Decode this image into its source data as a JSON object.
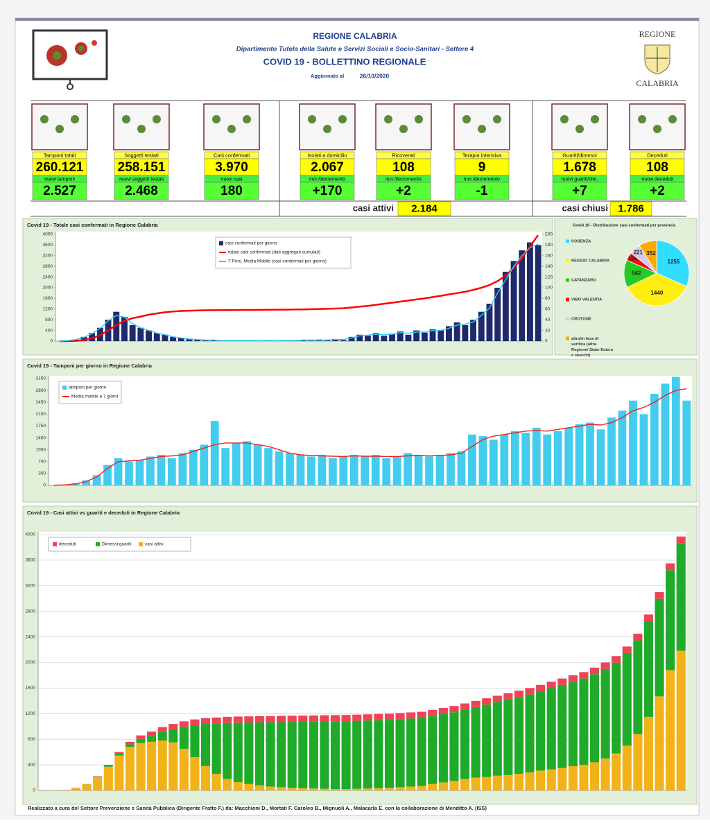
{
  "header": {
    "title": "REGIONE CALABRIA",
    "department": "Dipartimento Tutela della Salute e Servizi Sociali e Socio-Sanitari - Settore 4",
    "bulletin": "COVID 19 - BOLLETTINO REGIONALE",
    "updated_label": "Aggiornato al",
    "updated_date": "26/10/2020",
    "logo_top": "REGIONE",
    "logo_bottom": "CALABRIA"
  },
  "stats": [
    {
      "label": "Tamponi totali",
      "value": "260.121",
      "sub_label": "nuovi tamponi",
      "sub_value": "2.527"
    },
    {
      "label": "Soggetti testati",
      "value": "258.151",
      "sub_label": "nuovi soggetti testati",
      "sub_value": "2.468"
    },
    {
      "label": "Casi confermati",
      "value": "3.970",
      "sub_label": "nuovi casi",
      "sub_value": "180"
    },
    {
      "label": "Isolati a domicilio",
      "value": "2.067",
      "sub_label": "incr./decremento",
      "sub_value": "+170"
    },
    {
      "label": "Ricoverati",
      "value": "108",
      "sub_label": "incr./decremento",
      "sub_value": "+2"
    },
    {
      "label": "Terapia intensiva",
      "value": "9",
      "sub_label": "incr./decremento",
      "sub_value": "-1"
    },
    {
      "label": "Guariti/dimessi",
      "value": "1.678",
      "sub_label": "nuovi guariti/dim.",
      "sub_value": "+7"
    },
    {
      "label": "Deceduti",
      "value": "108",
      "sub_label": "nuovi deceduti",
      "sub_value": "+2"
    }
  ],
  "summary": [
    {
      "label": "casi attivi",
      "value": "2.184"
    },
    {
      "label": "casi chiusi",
      "value": "1.786"
    }
  ],
  "chart_data": [
    {
      "type": "bar",
      "title": "Covid 19 - Totale casi confermati in Regione Calabria",
      "ylim": [
        0,
        4000
      ],
      "yticks": [
        0,
        400,
        800,
        1200,
        1600,
        2000,
        2400,
        2800,
        3200,
        3600,
        4000
      ],
      "y2lim": [
        0,
        200
      ],
      "y2ticks": [
        0,
        20,
        40,
        60,
        80,
        100,
        120,
        140,
        160,
        180,
        200
      ],
      "legend": "top-center",
      "series": [
        {
          "name": "casi confermati per giorno",
          "type": "bar",
          "axis": "y2",
          "color": "#1f2a6b",
          "values": [
            0,
            1,
            3,
            8,
            15,
            25,
            40,
            55,
            45,
            30,
            25,
            20,
            15,
            12,
            8,
            6,
            4,
            3,
            2,
            2,
            1,
            1,
            1,
            1,
            1,
            0,
            1,
            0,
            1,
            1,
            2,
            1,
            3,
            2,
            4,
            2,
            8,
            12,
            10,
            15,
            10,
            14,
            18,
            12,
            20,
            16,
            22,
            20,
            28,
            35,
            30,
            40,
            55,
            70,
            100,
            130,
            150,
            170,
            185,
            180
          ]
        },
        {
          "name": "totale casi confermati (dati aggregati cumulati)",
          "type": "line",
          "color": "#ff0000",
          "values": [
            0,
            2,
            10,
            40,
            100,
            220,
            400,
            600,
            760,
            860,
            920,
            990,
            1040,
            1080,
            1110,
            1130,
            1140,
            1150,
            1155,
            1158,
            1160,
            1162,
            1165,
            1168,
            1170,
            1172,
            1175,
            1178,
            1180,
            1185,
            1190,
            1195,
            1200,
            1210,
            1220,
            1230,
            1260,
            1290,
            1320,
            1360,
            1400,
            1440,
            1480,
            1520,
            1560,
            1600,
            1650,
            1700,
            1750,
            1800,
            1850,
            1920,
            2000,
            2100,
            2250,
            2450,
            2750,
            3100,
            3550,
            3970
          ]
        },
        {
          "name": "7 Perc. Media Mobile (casi confermati per giorno)",
          "type": "line",
          "axis": "y2",
          "color": "#33ccee",
          "values": [
            0,
            1,
            3,
            7,
            14,
            24,
            38,
            48,
            45,
            33,
            25,
            20,
            15,
            12,
            8,
            6,
            4,
            3,
            2,
            2,
            1,
            1,
            1,
            1,
            1,
            1,
            1,
            1,
            1,
            1,
            2,
            2,
            2,
            2,
            3,
            3,
            6,
            10,
            11,
            13,
            12,
            13,
            16,
            15,
            17,
            17,
            20,
            20,
            24,
            30,
            32,
            36,
            48,
            62,
            90,
            115,
            140,
            160,
            175,
            182
          ]
        }
      ]
    },
    {
      "type": "pie",
      "title": "Covid 19 - Distribuzione casi confermati per provincia",
      "categories": [
        "COSENZA",
        "REGGIO CALABRIA",
        "CATANZARO",
        "VIBO VALENTIA",
        "CROTONE",
        "altro/in fase di verifica (altra Regione/ Stato Estero e sbarchi)"
      ],
      "values": [
        1255,
        1440,
        542,
        160,
        221,
        352
      ],
      "colors": [
        "#33ddff",
        "#ffee11",
        "#22cc22",
        "#ee1111",
        "#d8c8ee",
        "#ffaa00"
      ]
    },
    {
      "type": "bar",
      "title": "Covid 19 - Tamponi per giorno in Regione Calabria",
      "ylim": [
        0,
        3150
      ],
      "yticks": [
        0,
        350,
        700,
        1050,
        1400,
        1750,
        2100,
        2450,
        2800,
        3150
      ],
      "legend": "top-left",
      "series": [
        {
          "name": "tamponi per giorno",
          "type": "bar",
          "color": "#44ccee",
          "values": [
            0,
            20,
            60,
            150,
            300,
            600,
            800,
            700,
            750,
            850,
            900,
            800,
            950,
            1050,
            1200,
            1900,
            1100,
            1250,
            1300,
            1200,
            1100,
            1000,
            950,
            900,
            850,
            900,
            800,
            850,
            900,
            850,
            900,
            800,
            850,
            950,
            900,
            850,
            900,
            950,
            1000,
            1500,
            1450,
            1350,
            1500,
            1600,
            1550,
            1700,
            1500,
            1600,
            1700,
            1800,
            1850,
            1650,
            2000,
            2200,
            2500,
            2100,
            2700,
            3000,
            3200,
            2500
          ]
        },
        {
          "name": "Media mobile a 7 giorni",
          "type": "line",
          "color": "#ee2222",
          "values": [
            0,
            15,
            40,
            110,
            250,
            500,
            700,
            720,
            740,
            800,
            850,
            870,
            900,
            1000,
            1100,
            1200,
            1250,
            1250,
            1250,
            1200,
            1150,
            1050,
            950,
            900,
            880,
            870,
            860,
            850,
            870,
            860,
            860,
            850,
            850,
            870,
            880,
            870,
            880,
            900,
            950,
            1150,
            1350,
            1450,
            1500,
            1550,
            1600,
            1620,
            1600,
            1650,
            1700,
            1750,
            1800,
            1780,
            1850,
            2000,
            2200,
            2300,
            2450,
            2650,
            2800,
            2850
          ]
        }
      ]
    },
    {
      "type": "stacked_bar",
      "title": "Covid 19 - Casi attivi vs guariti e deceduti in Regione Calabria",
      "ylim": [
        0,
        4000
      ],
      "yticks": [
        0,
        400,
        800,
        1200,
        1600,
        2000,
        2400,
        2800,
        3200,
        3600,
        4000
      ],
      "grid": true,
      "legend": "top-left",
      "series": [
        {
          "name": "casi attivi",
          "color": "#f2b21a",
          "values": [
            0,
            2,
            10,
            38,
            95,
            205,
            370,
            545,
            680,
            740,
            760,
            780,
            750,
            650,
            520,
            380,
            260,
            180,
            130,
            100,
            80,
            60,
            50,
            40,
            35,
            30,
            25,
            20,
            20,
            25,
            30,
            35,
            40,
            50,
            60,
            70,
            100,
            125,
            150,
            180,
            200,
            210,
            230,
            240,
            260,
            280,
            310,
            330,
            350,
            380,
            400,
            440,
            500,
            580,
            700,
            880,
            1150,
            1470,
            1880,
            2184
          ]
        },
        {
          "name": "Dimessi guariti",
          "color": "#1faa2a",
          "values": [
            0,
            0,
            0,
            1,
            2,
            7,
            15,
            30,
            40,
            65,
            90,
            132,
            208,
            345,
            502,
            660,
            788,
            875,
            929,
            962,
            983,
            1005,
            1018,
            1031,
            1038,
            1045,
            1053,
            1061,
            1063,
            1063,
            1063,
            1063,
            1063,
            1063,
            1063,
            1063,
            1063,
            1068,
            1073,
            1082,
            1102,
            1132,
            1151,
            1181,
            1201,
            1220,
            1240,
            1270,
            1299,
            1319,
            1349,
            1378,
            1398,
            1417,
            1447,
            1466,
            1496,
            1525,
            1564,
            1678
          ]
        },
        {
          "name": "deceduti",
          "color": "#ee4455",
          "values": [
            0,
            0,
            0,
            1,
            3,
            8,
            15,
            25,
            40,
            55,
            70,
            78,
            82,
            85,
            88,
            90,
            92,
            95,
            96,
            96,
            97,
            97,
            97,
            97,
            97,
            97,
            97,
            97,
            97,
            97,
            97,
            97,
            97,
            97,
            97,
            97,
            97,
            97,
            97,
            98,
            98,
            98,
            99,
            99,
            99,
            100,
            100,
            100,
            101,
            101,
            101,
            102,
            102,
            103,
            103,
            104,
            104,
            105,
            106,
            108
          ]
        }
      ]
    }
  ],
  "footer": "Realizzato a cura del Settore Prevenzione e Sanità Pubblica (Dirigente Fratto F.) da: Macchioni D., Mortati F. Caroleo B., Mignuoli A., Malacarla E. con la collaborazione di Menditto A. (ISS)"
}
